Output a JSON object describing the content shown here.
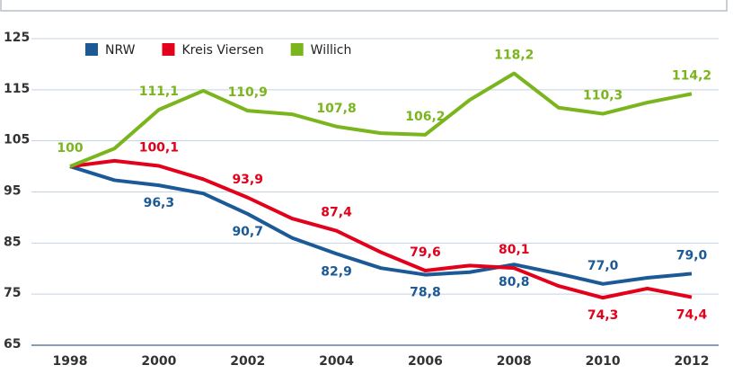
{
  "chart_data": {
    "type": "line",
    "x": [
      1998,
      1999,
      2000,
      2001,
      2002,
      2003,
      2004,
      2005,
      2006,
      2007,
      2008,
      2009,
      2010,
      2011,
      2012
    ],
    "xticks": [
      1998,
      2000,
      2002,
      2004,
      2006,
      2008,
      2010,
      2012
    ],
    "xlim": [
      1998,
      2012
    ],
    "ylim": [
      65,
      125
    ],
    "yticks": [
      65,
      75,
      85,
      95,
      105,
      115,
      125
    ],
    "grid": true,
    "legend": "top-left",
    "series": [
      {
        "name": "NRW",
        "color": "#1b5a96",
        "values": [
          100,
          97.3,
          96.3,
          94.7,
          90.7,
          86.0,
          82.9,
          80.1,
          78.8,
          79.3,
          80.8,
          79.0,
          77.0,
          78.2,
          79.0
        ],
        "value_labels": [
          null,
          null,
          "96,3",
          null,
          "90,7",
          null,
          "82,9",
          null,
          "78,8",
          null,
          "80,8",
          null,
          "77,0",
          null,
          "79,0"
        ]
      },
      {
        "name": "Kreis Viersen",
        "color": "#e2001a",
        "values": [
          100,
          101.1,
          100.1,
          97.5,
          93.9,
          89.8,
          87.4,
          83.2,
          79.6,
          80.6,
          80.1,
          76.6,
          74.3,
          76.1,
          74.4
        ],
        "value_labels": [
          null,
          null,
          "100,1",
          null,
          "93,9",
          null,
          "87,4",
          null,
          "79,6",
          null,
          "80,1",
          null,
          "74,3",
          null,
          "74,4"
        ]
      },
      {
        "name": "Willich",
        "color": "#7ab51d",
        "values": [
          100,
          103.5,
          111.1,
          114.8,
          110.9,
          110.2,
          107.8,
          106.5,
          106.2,
          113.0,
          118.2,
          111.5,
          110.3,
          112.5,
          114.2
        ],
        "value_labels": [
          "100",
          null,
          "111,1",
          null,
          "110,9",
          null,
          "107,8",
          null,
          "106,2",
          null,
          "118,2",
          null,
          "110,3",
          null,
          "114,2"
        ]
      }
    ]
  }
}
